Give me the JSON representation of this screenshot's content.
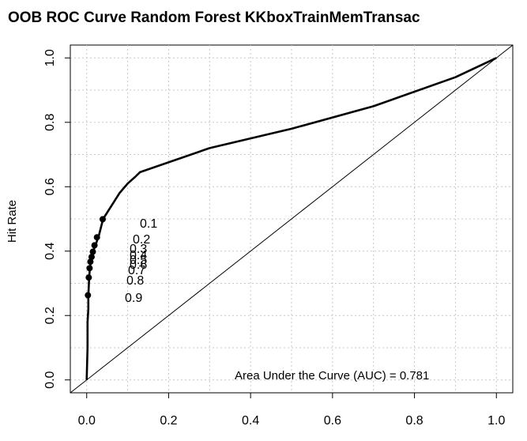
{
  "chart_data": {
    "type": "line",
    "title": "OOB ROC Curve Random Forest KKboxTrainMemTransac",
    "xlabel": "",
    "ylabel": "Hit Rate",
    "xlim": [
      -0.04,
      1.04
    ],
    "ylim": [
      -0.04,
      1.04
    ],
    "x_ticks": [
      "0.0",
      "0.2",
      "0.4",
      "0.6",
      "0.8",
      "1.0"
    ],
    "y_ticks": [
      "0.0",
      "0.2",
      "0.4",
      "0.6",
      "0.8",
      "1.0"
    ],
    "grid": true,
    "series": [
      {
        "type": "line",
        "x": [
          0.0,
          0.002,
          0.002,
          0.004,
          0.004,
          0.006,
          0.008,
          0.012,
          0.016,
          0.022,
          0.03,
          0.04,
          0.06,
          0.08,
          0.1,
          0.118,
          0.13,
          0.3,
          0.5,
          0.7,
          0.9,
          1.0
        ],
        "y": [
          0.0,
          0.1,
          0.18,
          0.22,
          0.26,
          0.32,
          0.35,
          0.38,
          0.4,
          0.42,
          0.45,
          0.5,
          0.54,
          0.58,
          0.61,
          0.63,
          0.645,
          0.72,
          0.78,
          0.85,
          0.94,
          1.0
        ]
      },
      {
        "type": "reference",
        "x": [
          0,
          1
        ],
        "y": [
          0,
          1
        ]
      }
    ],
    "cutoff_points": [
      {
        "label": "0.1",
        "x": 0.039,
        "y": 0.499
      },
      {
        "label": "0.2",
        "x": 0.025,
        "y": 0.443
      },
      {
        "label": "0.3",
        "x": 0.019,
        "y": 0.418
      },
      {
        "label": "0.4",
        "x": 0.015,
        "y": 0.398
      },
      {
        "label": "0.5",
        "x": 0.012,
        "y": 0.382
      },
      {
        "label": "0.6",
        "x": 0.009,
        "y": 0.367
      },
      {
        "label": "0.7",
        "x": 0.007,
        "y": 0.347
      },
      {
        "label": "0.8",
        "x": 0.005,
        "y": 0.318
      },
      {
        "label": "0.9",
        "x": 0.003,
        "y": 0.263
      }
    ],
    "annotation": "Area Under the Curve (AUC) = 0.781"
  }
}
